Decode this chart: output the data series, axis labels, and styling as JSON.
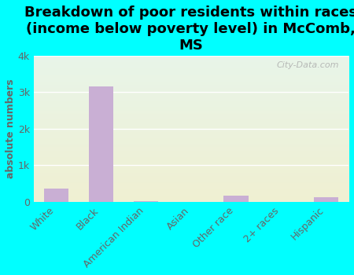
{
  "title": "Breakdown of poor residents within races\n(income below poverty level) in McComb,\nMS",
  "categories": [
    "White",
    "Black",
    "American Indian",
    "Asian",
    "Other race",
    "2+ races",
    "Hispanic"
  ],
  "values": [
    370,
    3150,
    25,
    0,
    160,
    0,
    130
  ],
  "bar_color": "#c9afd4",
  "ylabel": "absolute numbers",
  "ylim": [
    0,
    4000
  ],
  "yticks": [
    0,
    1000,
    2000,
    3000,
    4000
  ],
  "ytick_labels": [
    "0",
    "1k",
    "2k",
    "3k",
    "4k"
  ],
  "background_color": "#00ffff",
  "watermark": "City-Data.com",
  "title_fontsize": 13,
  "label_fontsize": 9,
  "tick_color": "#666666"
}
